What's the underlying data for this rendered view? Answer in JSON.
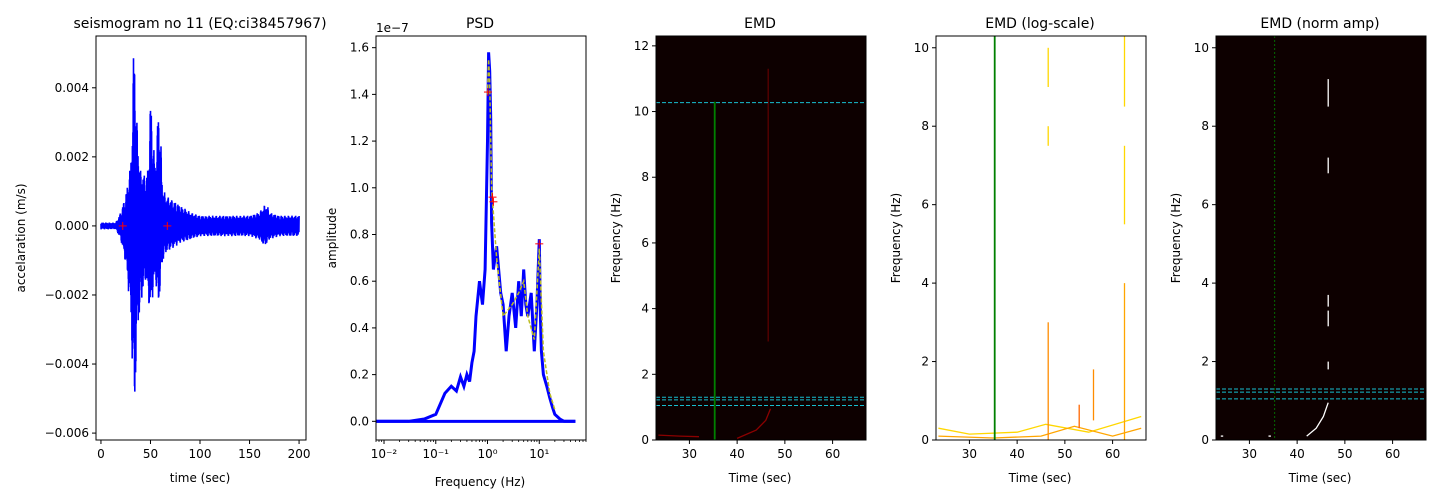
{
  "chart_data": [
    {
      "type": "line",
      "title": "seismogram no 11 (EQ:ci38457967)",
      "xlabel": "time (sec)",
      "ylabel": "accelaration (m/s)",
      "xlim": [
        -5,
        207
      ],
      "ylim": [
        -0.0062,
        0.0055
      ],
      "xticks": [
        0,
        50,
        100,
        150,
        200
      ],
      "xtick_labels": [
        "0",
        "50",
        "100",
        "150",
        "200"
      ],
      "yticks": [
        -0.006,
        -0.004,
        -0.002,
        0.0,
        0.002,
        0.004
      ],
      "ytick_labels": [
        "−0.006",
        "−0.004",
        "−0.002",
        "0.000",
        "0.002",
        "0.004"
      ],
      "series": [
        {
          "color": "#0000ff",
          "envelope": {
            "x": [
              0,
              15,
              20,
              25,
              30,
              32,
              33,
              34,
              35,
              36,
              38,
              40,
              42,
              45,
              48,
              50,
              52,
              55,
              58,
              60,
              62,
              65,
              70,
              80,
              90,
              100,
              110,
              120,
              130,
              140,
              150,
              160,
              165,
              168,
              170,
              180,
              190,
              200
            ],
            "upper": [
              0.0001,
              0.0001,
              0.0004,
              0.0009,
              0.0018,
              0.0035,
              0.0052,
              0.0053,
              0.0042,
              0.0032,
              0.0022,
              0.0016,
              0.0016,
              0.0014,
              0.0018,
              0.0038,
              0.0028,
              0.0017,
              0.0035,
              0.0028,
              0.0012,
              0.0009,
              0.0008,
              0.0006,
              0.0004,
              0.0003,
              0.0003,
              0.0003,
              0.0003,
              0.0003,
              0.0003,
              0.0004,
              0.0006,
              0.0006,
              0.0004,
              0.0003,
              0.0003,
              0.0003
            ],
            "lower": [
              -0.0001,
              -0.0001,
              -0.0004,
              -0.0011,
              -0.0025,
              -0.0043,
              -0.0051,
              -0.0055,
              -0.0045,
              -0.0035,
              -0.0028,
              -0.0024,
              -0.002,
              -0.0016,
              -0.0022,
              -0.0026,
              -0.0021,
              -0.0015,
              -0.0025,
              -0.0017,
              -0.0011,
              -0.0008,
              -0.0007,
              -0.0005,
              -0.0004,
              -0.0003,
              -0.0003,
              -0.0003,
              -0.0003,
              -0.0003,
              -0.0003,
              -0.0004,
              -0.0006,
              -0.0005,
              -0.0004,
              -0.0003,
              -0.0003,
              -0.0003
            ]
          }
        }
      ],
      "markers": [
        {
          "x": 22,
          "y": 0.0,
          "color": "#ff0000",
          "symbol": "+"
        },
        {
          "x": 67,
          "y": 0.0,
          "color": "#ff0000",
          "symbol": "+"
        }
      ]
    },
    {
      "type": "line",
      "title": "PSD",
      "xlabel": "Frequency (Hz)",
      "ylabel": "amplitude",
      "xscale": "log",
      "xlim": [
        0.007,
        80
      ],
      "ylim": [
        -0.08,
        1.65
      ],
      "offset_text": "1e−7",
      "xticks": [
        0.01,
        0.1,
        1,
        10
      ],
      "xtick_labels": [
        "10⁻²",
        "10⁻¹",
        "10⁰",
        "10¹"
      ],
      "yticks": [
        0.0,
        0.2,
        0.4,
        0.6,
        0.8,
        1.0,
        1.2,
        1.4,
        1.6
      ],
      "ytick_labels": [
        "0.0",
        "0.2",
        "0.4",
        "0.6",
        "0.8",
        "1.0",
        "1.2",
        "1.4",
        "1.6"
      ],
      "series": [
        {
          "color": "#0000ff",
          "x": [
            0.007,
            0.01,
            0.03,
            0.06,
            0.1,
            0.15,
            0.2,
            0.25,
            0.3,
            0.35,
            0.4,
            0.45,
            0.5,
            0.55,
            0.6,
            0.7,
            0.8,
            0.9,
            1.0,
            1.05,
            1.1,
            1.15,
            1.2,
            1.3,
            1.5,
            1.8,
            2.0,
            2.3,
            2.6,
            3.0,
            3.5,
            4.0,
            4.5,
            5.0,
            5.5,
            6.0,
            7.0,
            8.0,
            9.0,
            10.0,
            10.5,
            11.0,
            12.0,
            14.0,
            16.0,
            18.0,
            20.0,
            25.0,
            30.0,
            50.0
          ],
          "y": [
            0.0,
            0.0,
            0.0,
            0.01,
            0.03,
            0.12,
            0.15,
            0.13,
            0.19,
            0.15,
            0.2,
            0.17,
            0.25,
            0.3,
            0.45,
            0.6,
            0.5,
            0.65,
            1.2,
            1.58,
            1.5,
            1.3,
            0.85,
            0.65,
            0.75,
            0.55,
            0.5,
            0.3,
            0.45,
            0.55,
            0.4,
            0.6,
            0.45,
            0.65,
            0.5,
            0.45,
            0.55,
            0.3,
            0.5,
            0.78,
            0.45,
            0.3,
            0.2,
            0.15,
            0.1,
            0.06,
            0.03,
            0.01,
            0.0,
            0.0
          ]
        },
        {
          "color": "#bcbd22",
          "dashed": true,
          "x": [
            1.0,
            1.05,
            1.1,
            1.2,
            1.5,
            2.0,
            3.0,
            4.0,
            5.0,
            6.0,
            8.0,
            10.0,
            12.0,
            16.0,
            20.0
          ],
          "y": [
            1.4,
            1.55,
            1.45,
            1.0,
            0.7,
            0.45,
            0.5,
            0.55,
            0.6,
            0.45,
            0.35,
            0.74,
            0.3,
            0.12,
            0.05
          ]
        }
      ],
      "markers": [
        {
          "x": 1.02,
          "y": 1.41,
          "color": "#ff0000",
          "symbol": "+"
        },
        {
          "x": 1.25,
          "y": 0.96,
          "color": "#ff0000",
          "symbol": "+"
        },
        {
          "x": 1.3,
          "y": 0.94,
          "color": "#ff0000",
          "symbol": "+"
        },
        {
          "x": 10.0,
          "y": 0.76,
          "color": "#ff0000",
          "symbol": "+"
        }
      ]
    },
    {
      "type": "heatmap",
      "title": "EMD",
      "xlabel": "Time (sec)",
      "ylabel": "Frequency (Hz)",
      "xlim": [
        23,
        67
      ],
      "ylim": [
        0,
        12.3
      ],
      "background": "#0d0000",
      "xticks": [
        30,
        40,
        50,
        60
      ],
      "xtick_labels": [
        "30",
        "40",
        "50",
        "60"
      ],
      "yticks": [
        0,
        2,
        4,
        6,
        8,
        10,
        12
      ],
      "ytick_labels": [
        "0",
        "2",
        "4",
        "6",
        "8",
        "10",
        "12"
      ],
      "vlines": [
        {
          "x": 35.3,
          "y0": 0,
          "y1": 10.3,
          "color": "#008000"
        }
      ],
      "hlines": [
        {
          "y": 10.27,
          "color": "#17becf",
          "dashed": true
        },
        {
          "y": 1.3,
          "color": "#17becf",
          "dashed": true
        },
        {
          "y": 1.22,
          "color": "#17becf",
          "dashed": true
        },
        {
          "y": 1.05,
          "color": "#17becf",
          "dashed": true
        }
      ],
      "streaks": [
        {
          "points": [
            [
              23.5,
              0.15
            ],
            [
              28,
              0.12
            ],
            [
              32,
              0.1
            ]
          ],
          "color": "#8b0000"
        },
        {
          "points": [
            [
              40,
              0.05
            ],
            [
              44,
              0.3
            ],
            [
              46,
              0.6
            ],
            [
              47,
              0.95
            ]
          ],
          "color": "#8b0000"
        },
        {
          "points": [
            [
              46.5,
              11.3
            ],
            [
              46.5,
              3.0
            ]
          ],
          "color": "#5a0000"
        }
      ]
    },
    {
      "type": "heatmap",
      "title": "EMD (log-scale)",
      "xlabel": "Time (sec)",
      "ylabel": "Frequency (Hz)",
      "xlim": [
        23,
        67
      ],
      "ylim": [
        0,
        10.3
      ],
      "background": "#ffffff",
      "xticks": [
        30,
        40,
        50,
        60
      ],
      "xtick_labels": [
        "30",
        "40",
        "50",
        "60"
      ],
      "yticks": [
        0,
        2,
        4,
        6,
        8,
        10
      ],
      "ytick_labels": [
        "0",
        "2",
        "4",
        "6",
        "8",
        "10"
      ],
      "vlines": [
        {
          "x": 35.3,
          "y0": 0,
          "y1": 10.3,
          "color": "#008000"
        }
      ],
      "hlines": [],
      "streaks": [
        {
          "points": [
            [
              23.5,
              0.3
            ],
            [
              30,
              0.15
            ],
            [
              40,
              0.2
            ],
            [
              46,
              0.4
            ],
            [
              55,
              0.2
            ],
            [
              66,
              0.6
            ]
          ],
          "color": "#ffd700"
        },
        {
          "points": [
            [
              23.5,
              0.1
            ],
            [
              35,
              0.05
            ],
            [
              45,
              0.1
            ],
            [
              52,
              0.35
            ],
            [
              60,
              0.1
            ],
            [
              66,
              0.3
            ]
          ],
          "color": "#ffa500"
        },
        {
          "points": [
            [
              46.5,
              10.0
            ],
            [
              46.5,
              9.0
            ]
          ],
          "color": "#ffd700"
        },
        {
          "points": [
            [
              46.5,
              8.0
            ],
            [
              46.5,
              7.5
            ]
          ],
          "color": "#ffd700"
        },
        {
          "points": [
            [
              46.5,
              3.0
            ],
            [
              46.5,
              0.0
            ]
          ],
          "color": "#ff8c00"
        },
        {
          "points": [
            [
              62.5,
              10.3
            ],
            [
              62.5,
              8.5
            ]
          ],
          "color": "#ffd700"
        },
        {
          "points": [
            [
              62.5,
              7.5
            ],
            [
              62.5,
              5.5
            ]
          ],
          "color": "#ffd700"
        },
        {
          "points": [
            [
              62.5,
              4.0
            ],
            [
              62.5,
              0.0
            ]
          ],
          "color": "#ffa500"
        },
        {
          "points": [
            [
              56,
              1.8
            ],
            [
              56,
              0.5
            ]
          ],
          "color": "#ff8c00"
        },
        {
          "points": [
            [
              53,
              0.9
            ],
            [
              53,
              0.3
            ]
          ],
          "color": "#ff6600"
        }
      ]
    },
    {
      "type": "heatmap",
      "title": "EMD (norm amp)",
      "xlabel": "Time (sec)",
      "ylabel": "Frequency (Hz)",
      "xlim": [
        23,
        67
      ],
      "ylim": [
        0,
        10.3
      ],
      "background": "#0d0000",
      "xticks": [
        30,
        40,
        50,
        60
      ],
      "xtick_labels": [
        "30",
        "40",
        "50",
        "60"
      ],
      "yticks": [
        0,
        2,
        4,
        6,
        8,
        10
      ],
      "ytick_labels": [
        "0",
        "2",
        "4",
        "6",
        "8",
        "10"
      ],
      "vlines": [
        {
          "x": 35.3,
          "y0": 0,
          "y1": 10.3,
          "color": "#008000",
          "dashed": true
        }
      ],
      "hlines": [
        {
          "y": 1.3,
          "color": "#17becf",
          "dashed": true
        },
        {
          "y": 1.22,
          "color": "#17becf",
          "dashed": true
        },
        {
          "y": 1.05,
          "color": "#17becf",
          "dashed": true
        }
      ],
      "streaks": [
        {
          "points": [
            [
              46.5,
              9.2
            ],
            [
              46.5,
              8.5
            ]
          ],
          "color": "#ffffff"
        },
        {
          "points": [
            [
              46.5,
              7.2
            ],
            [
              46.5,
              6.8
            ]
          ],
          "color": "#ffffff"
        },
        {
          "points": [
            [
              46.5,
              3.7
            ],
            [
              46.5,
              3.4
            ]
          ],
          "color": "#ffffff"
        },
        {
          "points": [
            [
              46.5,
              3.3
            ],
            [
              46.5,
              2.9
            ]
          ],
          "color": "#ffffff"
        },
        {
          "points": [
            [
              46.5,
              2.0
            ],
            [
              46.5,
              1.8
            ]
          ],
          "color": "#ffffff"
        },
        {
          "points": [
            [
              42,
              0.1
            ],
            [
              44,
              0.3
            ],
            [
              45.5,
              0.6
            ],
            [
              46.5,
              0.95
            ]
          ],
          "color": "#ffffff"
        },
        {
          "points": [
            [
              24,
              0.1
            ],
            [
              24.5,
              0.1
            ]
          ],
          "color": "#ffffff"
        },
        {
          "points": [
            [
              34,
              0.1
            ],
            [
              34.5,
              0.1
            ]
          ],
          "color": "#ffffff"
        }
      ]
    }
  ]
}
